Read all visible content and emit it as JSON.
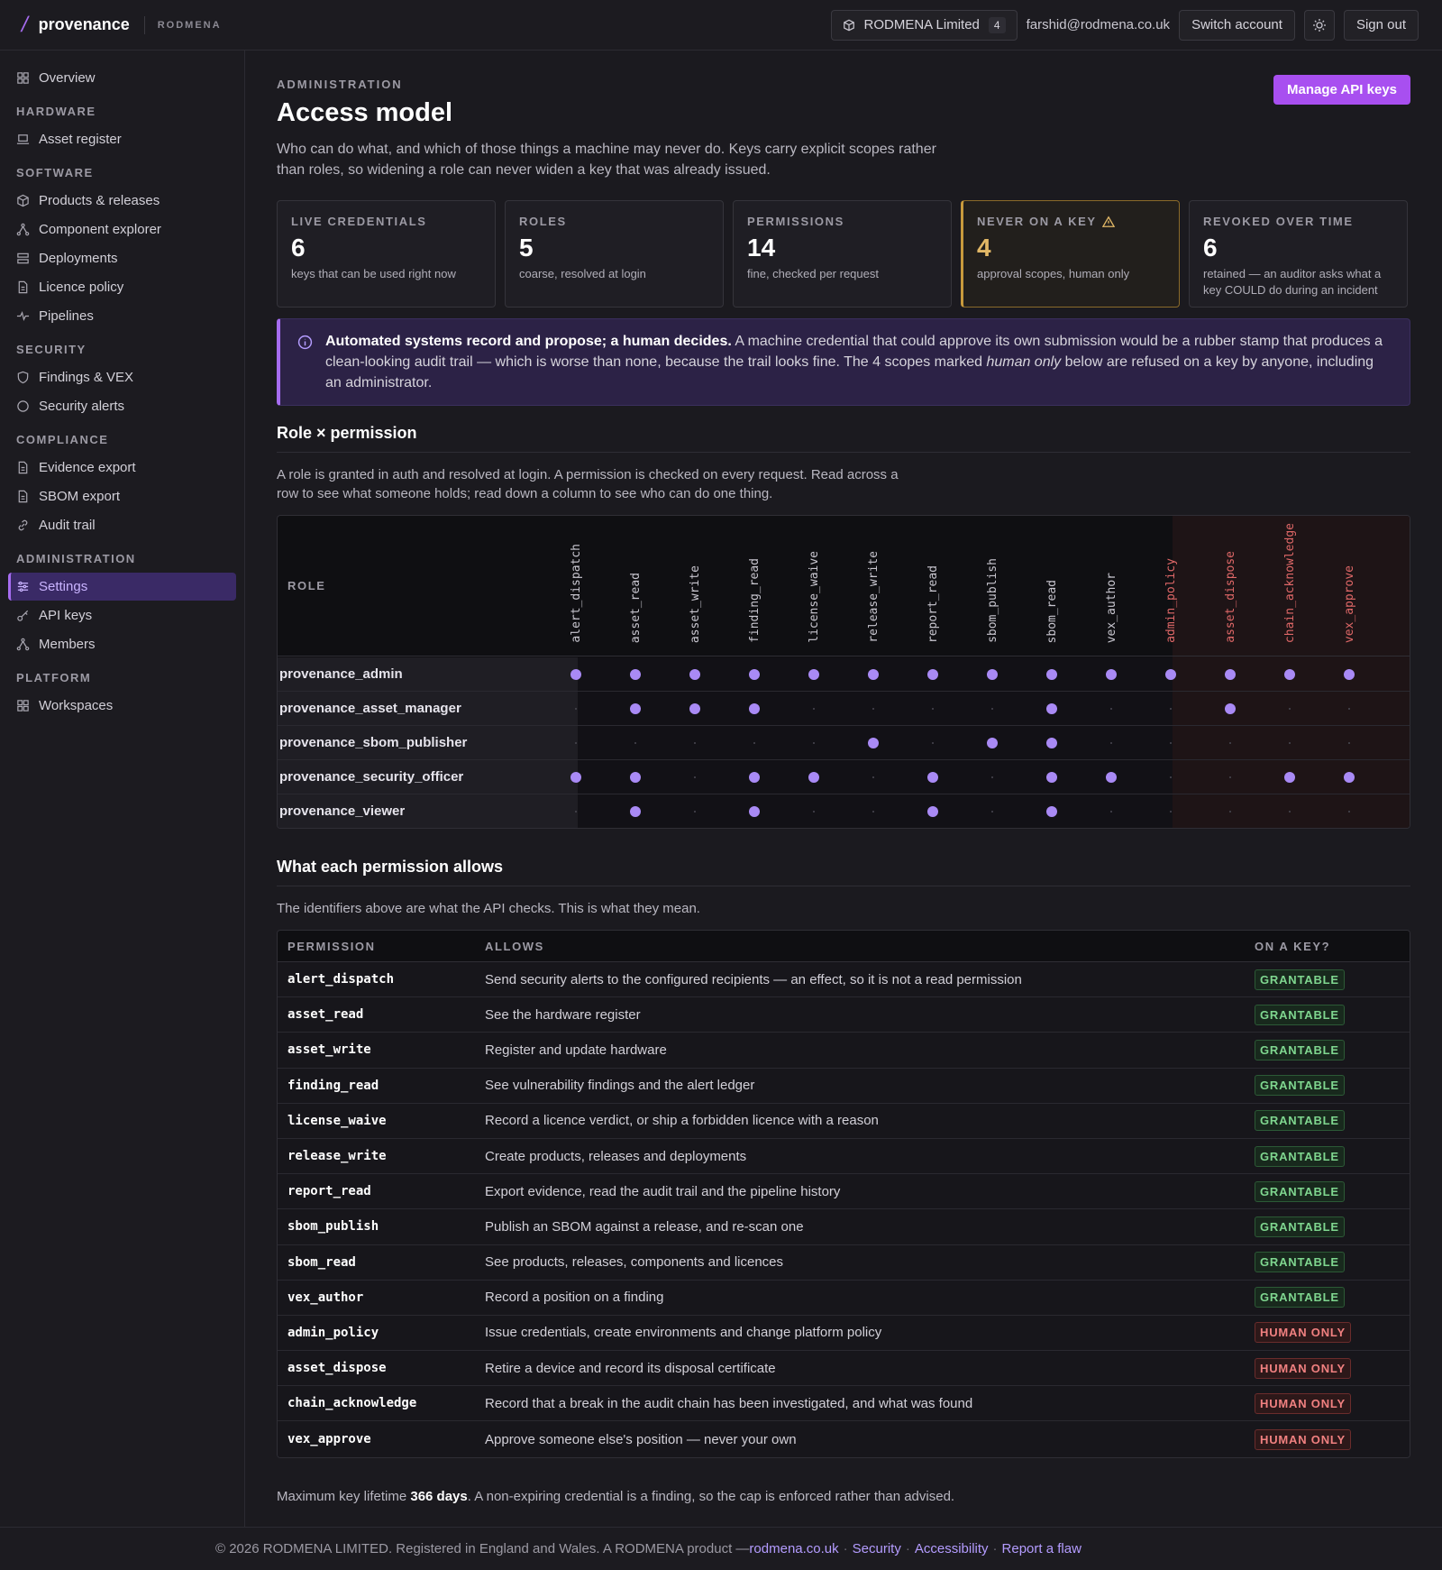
{
  "topbar": {
    "brand_name": "provenance",
    "brand_org": "RODMENA",
    "org_name": "RODMENA Limited",
    "org_count": "4",
    "user_email": "farshid@rodmena.co.uk",
    "switch_account": "Switch account",
    "sign_out": "Sign out"
  },
  "sidebar": {
    "overview": "Overview",
    "groups": {
      "hardware": "HARDWARE",
      "software": "SOFTWARE",
      "security": "SECURITY",
      "compliance": "COMPLIANCE",
      "administration": "ADMINISTRATION",
      "platform": "PLATFORM"
    },
    "items": {
      "asset_register": "Asset register",
      "products_releases": "Products & releases",
      "component_explorer": "Component explorer",
      "deployments": "Deployments",
      "licence_policy": "Licence policy",
      "pipelines": "Pipelines",
      "findings_vex": "Findings & VEX",
      "security_alerts": "Security alerts",
      "evidence_export": "Evidence export",
      "sbom_export": "SBOM export",
      "audit_trail": "Audit trail",
      "settings": "Settings",
      "api_keys": "API keys",
      "members": "Members",
      "workspaces": "Workspaces"
    }
  },
  "page": {
    "eyebrow": "ADMINISTRATION",
    "title": "Access model",
    "intro": "Who can do what, and which of those things a machine may never do. Keys carry explicit scopes rather than roles, so widening a role can never widen a key that was already issued.",
    "manage_button": "Manage API keys"
  },
  "stats": [
    {
      "label": "LIVE CREDENTIALS",
      "value": "6",
      "desc": "keys that can be used right now"
    },
    {
      "label": "ROLES",
      "value": "5",
      "desc": "coarse, resolved at login"
    },
    {
      "label": "PERMISSIONS",
      "value": "14",
      "desc": "fine, checked per request"
    },
    {
      "label": "NEVER ON A KEY",
      "value": "4",
      "desc": "approval scopes, human only"
    },
    {
      "label": "REVOKED OVER TIME",
      "value": "6",
      "desc": "retained — an auditor asks what a key COULD do during an incident"
    }
  ],
  "callout": {
    "bold": "Automated systems record and propose; a human decides.",
    "text1": " A machine credential that could approve its own submission would be a rubber stamp that produces a clean-looking audit trail — which is worse than none, because the trail looks fine. The 4 scopes marked ",
    "em": "human only",
    "text2": " below are refused on a key by anyone, including an administrator."
  },
  "matrix": {
    "title": "Role × permission",
    "desc": "A role is granted in auth and resolved at login. A permission is checked on every request. Read across a row to see what someone holds; read down a column to see who can do one thing.",
    "role_header": "ROLE",
    "columns": [
      "alert_dispatch",
      "asset_read",
      "asset_write",
      "finding_read",
      "license_waive",
      "release_write",
      "report_read",
      "sbom_publish",
      "sbom_read",
      "vex_author",
      "admin_policy",
      "asset_dispose",
      "chain_acknowledge",
      "vex_approve"
    ],
    "human_columns": [
      "admin_policy",
      "asset_dispose",
      "chain_acknowledge",
      "vex_approve"
    ],
    "rows": [
      {
        "role": "provenance_admin",
        "grants": [
          1,
          1,
          1,
          1,
          1,
          1,
          1,
          1,
          1,
          1,
          1,
          1,
          1,
          1
        ]
      },
      {
        "role": "provenance_asset_manager",
        "grants": [
          0,
          1,
          1,
          1,
          0,
          0,
          0,
          0,
          1,
          0,
          0,
          1,
          0,
          0
        ]
      },
      {
        "role": "provenance_sbom_publisher",
        "grants": [
          0,
          0,
          0,
          0,
          0,
          1,
          0,
          1,
          1,
          0,
          0,
          0,
          0,
          0
        ]
      },
      {
        "role": "provenance_security_officer",
        "grants": [
          1,
          1,
          0,
          1,
          1,
          0,
          1,
          0,
          1,
          1,
          0,
          0,
          1,
          1
        ]
      },
      {
        "role": "provenance_viewer",
        "grants": [
          0,
          1,
          0,
          1,
          0,
          0,
          1,
          0,
          1,
          0,
          0,
          0,
          0,
          0
        ]
      }
    ]
  },
  "permissions": {
    "title": "What each permission allows",
    "desc": "The identifiers above are what the API checks. This is what they mean.",
    "headers": {
      "permission": "PERMISSION",
      "allows": "ALLOWS",
      "on_key": "ON A KEY?"
    },
    "rows": [
      {
        "name": "alert_dispatch",
        "allows": "Send security alerts to the configured recipients — an effect, so it is not a read permission",
        "status": "GRANTABLE"
      },
      {
        "name": "asset_read",
        "allows": "See the hardware register",
        "status": "GRANTABLE"
      },
      {
        "name": "asset_write",
        "allows": "Register and update hardware",
        "status": "GRANTABLE"
      },
      {
        "name": "finding_read",
        "allows": "See vulnerability findings and the alert ledger",
        "status": "GRANTABLE"
      },
      {
        "name": "license_waive",
        "allows": "Record a licence verdict, or ship a forbidden licence with a reason",
        "status": "GRANTABLE"
      },
      {
        "name": "release_write",
        "allows": "Create products, releases and deployments",
        "status": "GRANTABLE"
      },
      {
        "name": "report_read",
        "allows": "Export evidence, read the audit trail and the pipeline history",
        "status": "GRANTABLE"
      },
      {
        "name": "sbom_publish",
        "allows": "Publish an SBOM against a release, and re-scan one",
        "status": "GRANTABLE"
      },
      {
        "name": "sbom_read",
        "allows": "See products, releases, components and licences",
        "status": "GRANTABLE"
      },
      {
        "name": "vex_author",
        "allows": "Record a position on a finding",
        "status": "GRANTABLE"
      },
      {
        "name": "admin_policy",
        "allows": "Issue credentials, create environments and change platform policy",
        "status": "HUMAN ONLY"
      },
      {
        "name": "asset_dispose",
        "allows": "Retire a device and record its disposal certificate",
        "status": "HUMAN ONLY"
      },
      {
        "name": "chain_acknowledge",
        "allows": "Record that a break in the audit chain has been investigated, and what was found",
        "status": "HUMAN ONLY"
      },
      {
        "name": "vex_approve",
        "allows": "Approve someone else's position — never your own",
        "status": "HUMAN ONLY"
      }
    ]
  },
  "key_lifetime": {
    "prefix": "Maximum key lifetime ",
    "value": "366 days",
    "suffix": ". A non-expiring credential is a finding, so the cap is enforced rather than advised."
  },
  "footer": {
    "copyright": "© 2026 RODMENA LIMITED. Registered in England and Wales. A RODMENA product — ",
    "site": "rodmena.co.uk",
    "security": "Security",
    "accessibility": "Accessibility",
    "report": "Report a flaw"
  },
  "colors": {
    "accent": "#a66cf0",
    "grant_dot": "#a98af5",
    "grantable": "#7fd68f",
    "human_only": "#f08080",
    "warn": "#e2b866"
  }
}
